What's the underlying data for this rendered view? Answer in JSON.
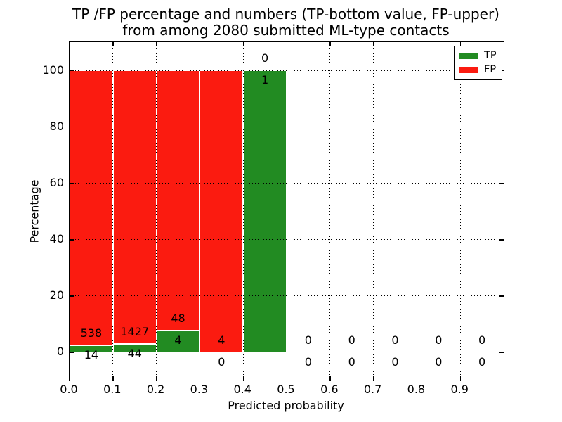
{
  "figure": {
    "title_line1": "TP /FP percentage and numbers (TP-bottom value, FP-upper)",
    "title_line2": "from among 2080 submitted ML-type contacts"
  },
  "chart_data": {
    "type": "bar",
    "subtype": "stacked-percentage-histogram",
    "title": "TP /FP percentage and numbers (TP-bottom value, FP-upper)\nfrom among 2080 submitted ML-type contacts",
    "xlabel": "Predicted probability",
    "ylabel": "Percentage",
    "xlim": [
      0.0,
      1.0
    ],
    "ylim": [
      -10,
      110
    ],
    "x_tick_values": [
      0.0,
      0.1,
      0.2,
      0.3,
      0.4,
      0.5,
      0.6,
      0.7,
      0.8,
      0.9
    ],
    "x_tick_labels": [
      "0.0",
      "0.1",
      "0.2",
      "0.3",
      "0.4",
      "0.5",
      "0.6",
      "0.7",
      "0.8",
      "0.9"
    ],
    "y_tick_values": [
      0,
      20,
      40,
      60,
      80,
      100
    ],
    "y_tick_labels": [
      "0",
      "20",
      "40",
      "60",
      "80",
      "100"
    ],
    "grid": "dotted",
    "total_submitted": 2080,
    "annotation_rule": "FP count shown above TP/FP boundary, TP count shown below it",
    "legend": {
      "position": "upper-right",
      "entries": [
        {
          "label": "TP",
          "color": "#228b22"
        },
        {
          "label": "FP",
          "color": "#fb1b10"
        }
      ]
    },
    "bins": [
      {
        "x_start": 0.0,
        "x_end": 0.1,
        "tp_count": 14,
        "fp_count": 538,
        "tp_pct": 2.5,
        "fp_pct": 97.5
      },
      {
        "x_start": 0.1,
        "x_end": 0.2,
        "tp_count": 44,
        "fp_count": 1427,
        "tp_pct": 3.0,
        "fp_pct": 97.0
      },
      {
        "x_start": 0.2,
        "x_end": 0.3,
        "tp_count": 4,
        "fp_count": 48,
        "tp_pct": 7.7,
        "fp_pct": 92.3
      },
      {
        "x_start": 0.3,
        "x_end": 0.4,
        "tp_count": 0,
        "fp_count": 4,
        "tp_pct": 0.0,
        "fp_pct": 100.0
      },
      {
        "x_start": 0.4,
        "x_end": 0.5,
        "tp_count": 1,
        "fp_count": 0,
        "tp_pct": 100.0,
        "fp_pct": 0.0
      },
      {
        "x_start": 0.5,
        "x_end": 0.6,
        "tp_count": 0,
        "fp_count": 0,
        "tp_pct": 0.0,
        "fp_pct": 0.0
      },
      {
        "x_start": 0.6,
        "x_end": 0.7,
        "tp_count": 0,
        "fp_count": 0,
        "tp_pct": 0.0,
        "fp_pct": 0.0
      },
      {
        "x_start": 0.7,
        "x_end": 0.8,
        "tp_count": 0,
        "fp_count": 0,
        "tp_pct": 0.0,
        "fp_pct": 0.0
      },
      {
        "x_start": 0.8,
        "x_end": 0.9,
        "tp_count": 0,
        "fp_count": 0,
        "tp_pct": 0.0,
        "fp_pct": 0.0
      },
      {
        "x_start": 0.9,
        "x_end": 1.0,
        "tp_count": 0,
        "fp_count": 0,
        "tp_pct": 0.0,
        "fp_pct": 0.0
      }
    ],
    "colors": {
      "tp": "#228b22",
      "fp": "#fb1b10",
      "grid": "#000000",
      "bar_edge": "#ffffff",
      "background": "#ffffff",
      "text": "#000000"
    }
  }
}
